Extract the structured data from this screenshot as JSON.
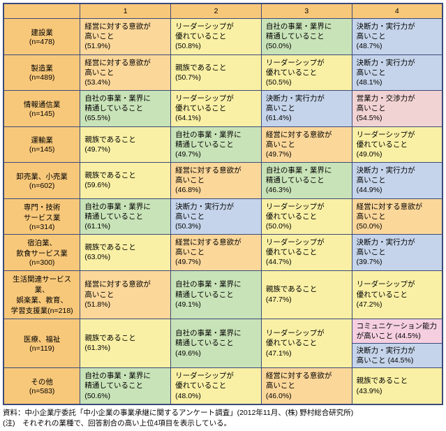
{
  "colors": {
    "header_bg": "#f8c87a",
    "rowhead_bg": "#f8c87a",
    "orange": "#fbd79a",
    "yellow": "#f9f0a5",
    "green": "#c9e3b8",
    "blue": "#c5d4ea",
    "red": "#f2d3d3",
    "pink": "#f5cfe0",
    "border": "#3b4a7a"
  },
  "columns": [
    "",
    "1",
    "2",
    "3",
    "4"
  ],
  "row_headers": [
    "建設業\n(n=478)",
    "製造業\n(n=489)",
    "情報通信業\n(n=145)",
    "運輸業\n(n=145)",
    "卸売業、小売業\n(n=602)",
    "専門・技術\nサービス業\n(n=314)",
    "宿泊業、\n飲食サービス業\n(n=300)",
    "生活関連サービス業、\n娯楽業、教育、\n学習支援業(n=218)",
    "医療、福祉\n(n=119)",
    "その他\n(n=583)"
  ],
  "cells": [
    [
      {
        "text": "経営に対する意欲が\n高いこと\n(51.9%)",
        "c": "orange"
      },
      {
        "text": "リーダーシップが\n優れていること\n(50.8%)",
        "c": "yellow"
      },
      {
        "text": "自社の事業・業界に\n精通していること\n(50.0%)",
        "c": "green"
      },
      {
        "text": "決断力・実行力が\n高いこと\n(48.7%)",
        "c": "blue"
      }
    ],
    [
      {
        "text": "経営に対する意欲が\n高いこと\n(53.4%)",
        "c": "orange"
      },
      {
        "text": "親族であること\n(50.7%)",
        "c": "yellow"
      },
      {
        "text": "リーダーシップが\n優れていること\n(50.5%)",
        "c": "yellow"
      },
      {
        "text": "決断力・実行力が\n高いこと\n(48.1%)",
        "c": "blue"
      }
    ],
    [
      {
        "text": "自社の事業・業界に\n精通していること\n(65.5%)",
        "c": "green"
      },
      {
        "text": "リーダーシップが\n優れていること\n(64.1%)",
        "c": "yellow"
      },
      {
        "text": "決断力・実行力が\n高いこと\n(61.4%)",
        "c": "blue"
      },
      {
        "text": "営業力・交渉力が\n高いこと\n(54.5%)",
        "c": "red"
      }
    ],
    [
      {
        "text": "親族であること\n(49.7%)",
        "c": "yellow"
      },
      {
        "text": "自社の事業・業界に\n精通していること\n(49.7%)",
        "c": "green"
      },
      {
        "text": "経営に対する意欲が\n高いこと\n(49.7%)",
        "c": "orange"
      },
      {
        "text": "リーダーシップが\n優れていること\n(49.0%)",
        "c": "yellow"
      }
    ],
    [
      {
        "text": "親族であること\n(59.6%)",
        "c": "yellow"
      },
      {
        "text": "経営に対する意欲が\n高いこと\n(46.8%)",
        "c": "orange"
      },
      {
        "text": "自社の事業・業界に\n精通していること\n(46.3%)",
        "c": "green"
      },
      {
        "text": "決断力・実行力が\n高いこと\n(44.9%)",
        "c": "blue"
      }
    ],
    [
      {
        "text": "自社の事業・業界に\n精通していること\n(61.1%)",
        "c": "green"
      },
      {
        "text": "決断力・実行力が\n高いこと\n(50.3%)",
        "c": "blue"
      },
      {
        "text": "リーダーシップが\n優れていること\n(50.0%)",
        "c": "yellow"
      },
      {
        "text": "経営に対する意欲が\n高いこと\n(50.0%)",
        "c": "orange"
      }
    ],
    [
      {
        "text": "親族であること\n(63.0%)",
        "c": "yellow"
      },
      {
        "text": "経営に対する意欲が\n高いこと\n(49.7%)",
        "c": "orange"
      },
      {
        "text": "リーダーシップが\n優れていること\n(44.7%)",
        "c": "yellow"
      },
      {
        "text": "決断力・実行力が\n高いこと\n(39.7%)",
        "c": "blue"
      }
    ],
    [
      {
        "text": "経営に対する意欲が\n高いこと\n(51.8%)",
        "c": "orange"
      },
      {
        "text": "自社の事業・業界に\n精通していること\n(49.1%)",
        "c": "green"
      },
      {
        "text": "親族であること\n(47.7%)",
        "c": "yellow"
      },
      {
        "text": "リーダーシップが\n優れていること\n(47.2%)",
        "c": "yellow"
      }
    ],
    [
      {
        "text": "親族であること\n(61.3%)",
        "c": "yellow"
      },
      {
        "text": "自社の事業・業界に\n精通していること\n(49.6%)",
        "c": "green"
      },
      {
        "text": "リーダーシップが\n優れていること\n(47.1%)",
        "c": "yellow"
      },
      {
        "text": "コミュニケーション能力\nが高いこと (44.5%)\n決断力・実行力が\n高いこと (44.5%)",
        "c": "pink",
        "split": true
      }
    ],
    [
      {
        "text": "自社の事業・業界に\n精通していること\n(50.6%)",
        "c": "green"
      },
      {
        "text": "リーダーシップが\n優れていること\n(48.0%)",
        "c": "yellow"
      },
      {
        "text": "経営に対する意欲が\n高いこと\n(46.0%)",
        "c": "orange"
      },
      {
        "text": "親族であること\n(43.9%)",
        "c": "yellow"
      }
    ]
  ],
  "footnote": "資料：中小企業庁委託「中小企業の事業承継に関するアンケート調査」(2012年11月、(株) 野村総合研究所)\n(注)　それぞれの業種で、回答割合の高い上位4項目を表示している。"
}
